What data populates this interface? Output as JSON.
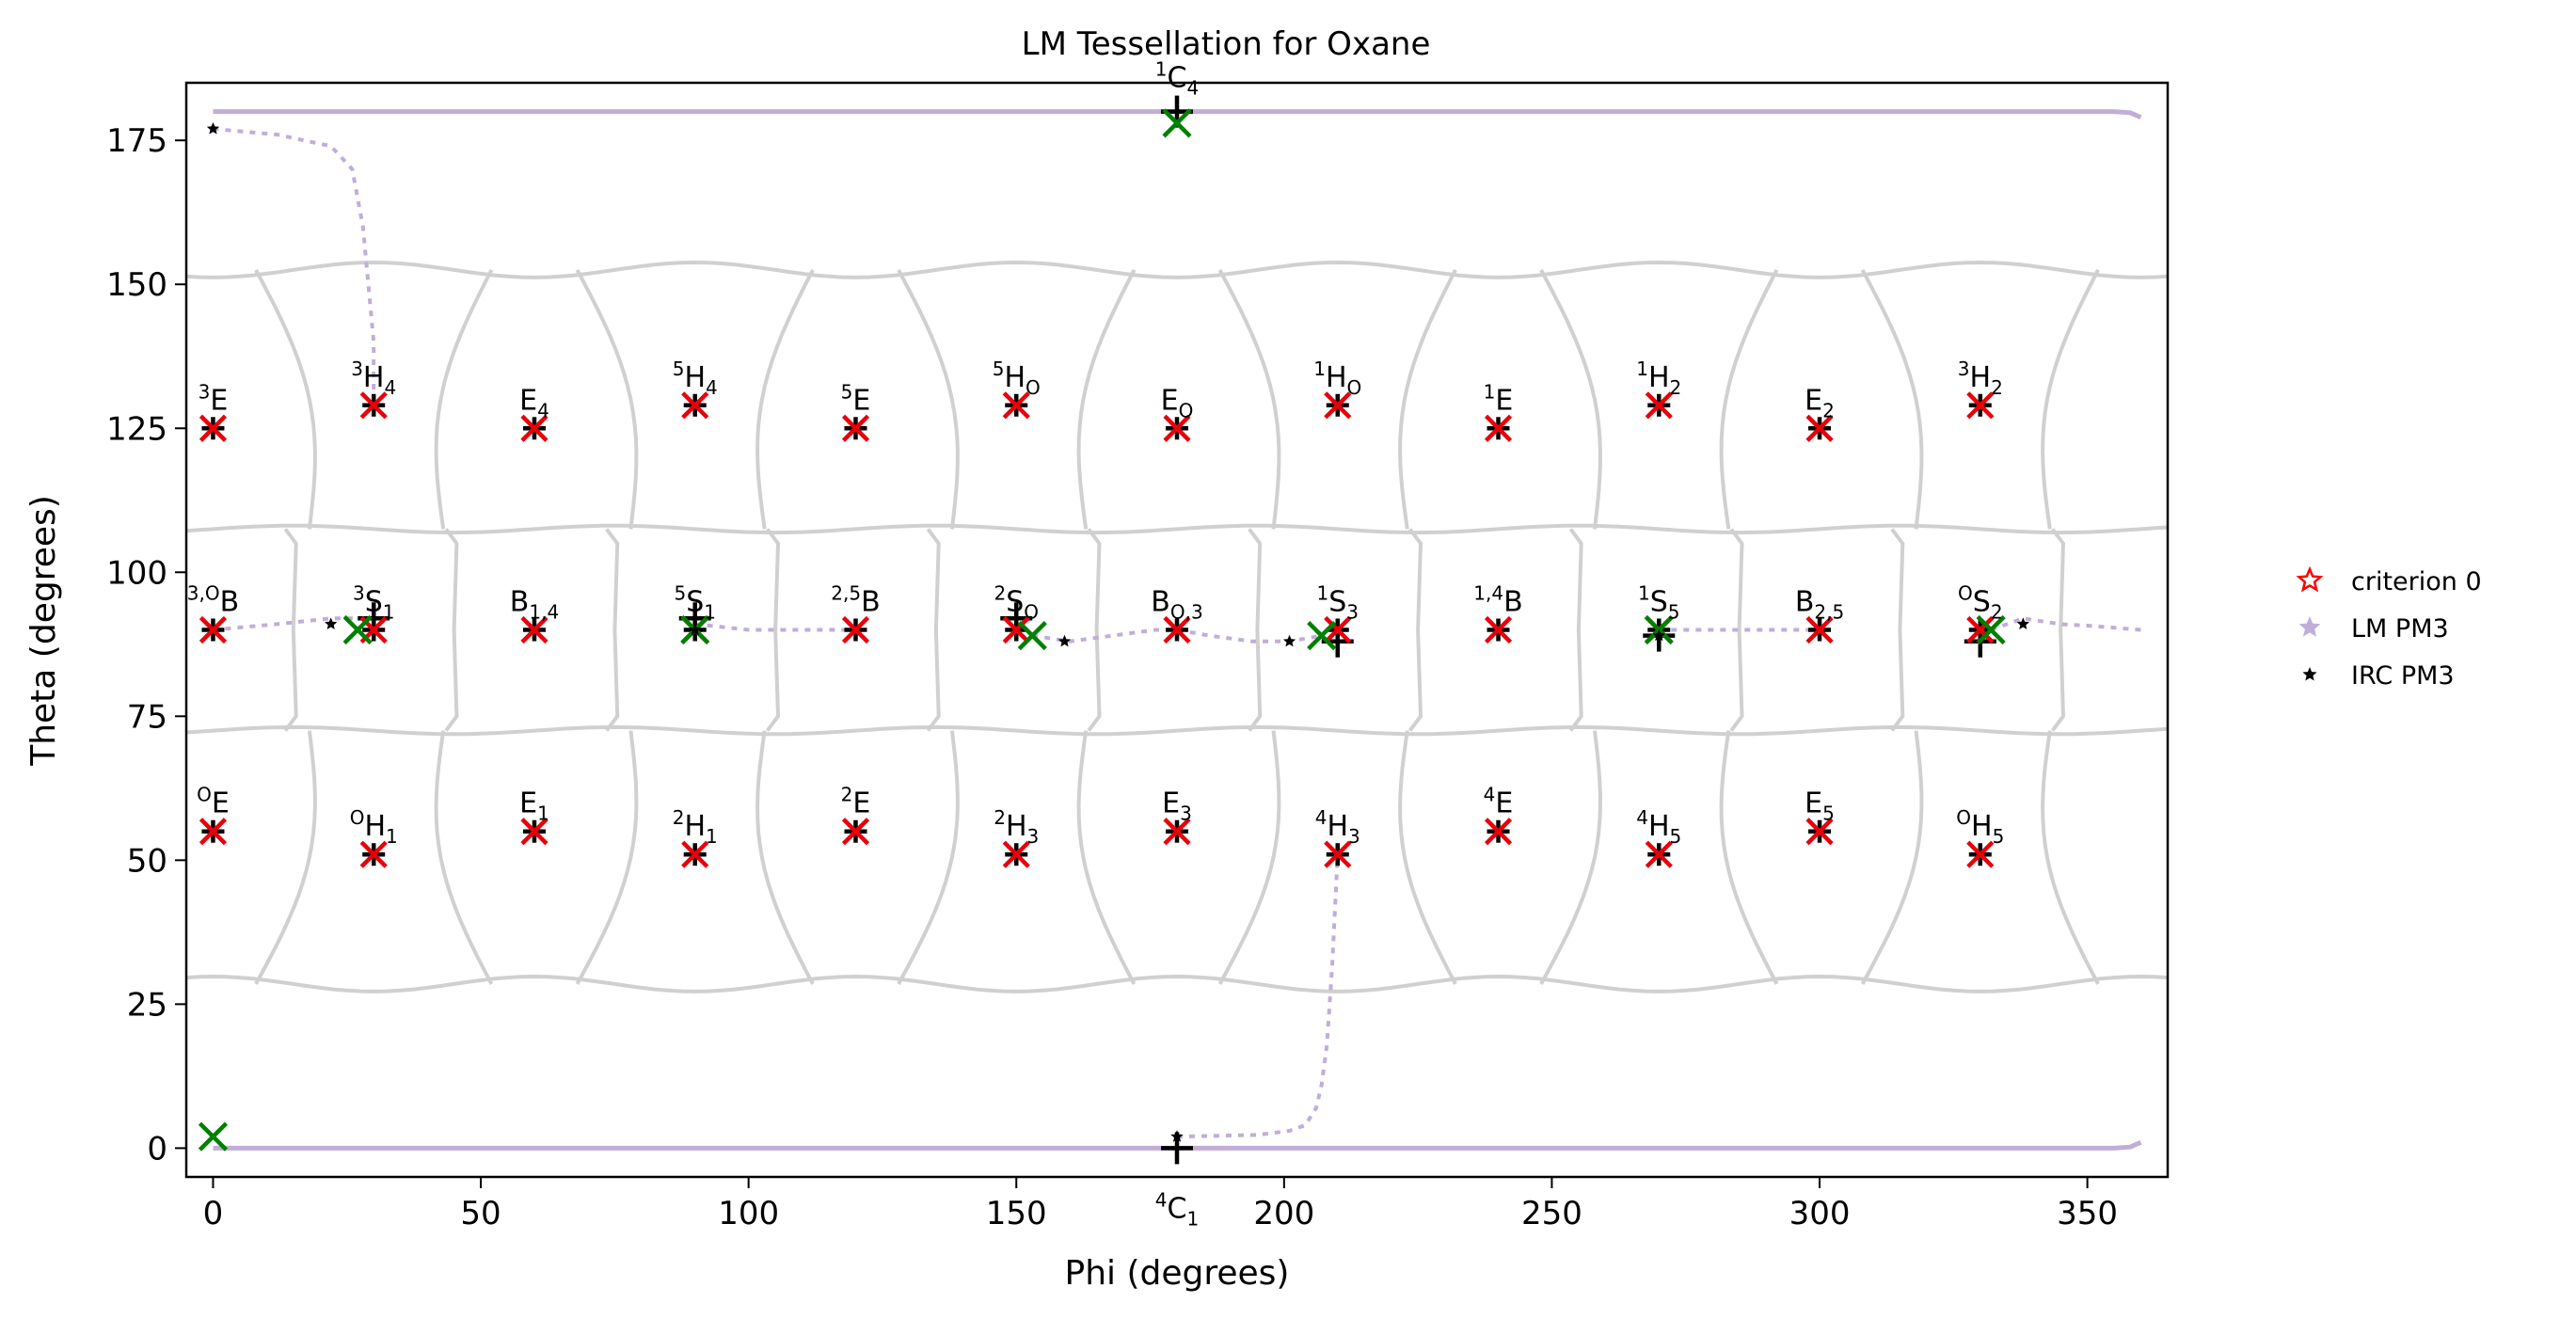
{
  "chart_data": {
    "type": "scatter",
    "title": "LM Tessellation for Oxane",
    "xlabel": "Phi (degrees)",
    "ylabel": "Theta (degrees)",
    "xlim": [
      -5,
      365
    ],
    "ylim": [
      185,
      -5
    ],
    "y_inverted": true,
    "xticks": [
      0,
      50,
      100,
      150,
      200,
      250,
      300,
      350
    ],
    "yticks": [
      0,
      25,
      50,
      75,
      100,
      125,
      150,
      175
    ],
    "grid": false,
    "legend": {
      "placement": "right-outside",
      "entries": [
        {
          "label": "criterion 0",
          "marker": "star-outline",
          "color": "#ff0000"
        },
        {
          "label": "LM PM3",
          "marker": "star",
          "color": "#c0aed8"
        },
        {
          "label": "IRC PM3",
          "marker": "star",
          "color": "#000000"
        }
      ]
    },
    "colors": {
      "reference_marker": "#e8000b",
      "green_marker": "#008000",
      "tessellation": "#d0d0d0",
      "path": "#c0aed8"
    },
    "puckers": [
      {
        "name": "4C1",
        "pre": "4",
        "base": "C",
        "sub": "1",
        "phi": 180,
        "theta": 0
      },
      {
        "name": "1C4",
        "pre": "1",
        "base": "C",
        "sub": "4",
        "phi": 180,
        "theta": 180
      },
      {
        "name": "OE",
        "pre": "O",
        "base": "E",
        "sub": "",
        "phi": 0,
        "theta": 55
      },
      {
        "name": "OH1",
        "pre": "O",
        "base": "H",
        "sub": "1",
        "phi": 30,
        "theta": 51
      },
      {
        "name": "E1",
        "pre": "",
        "base": "E",
        "sub": "1",
        "phi": 60,
        "theta": 55
      },
      {
        "name": "2H1",
        "pre": "2",
        "base": "H",
        "sub": "1",
        "phi": 90,
        "theta": 51
      },
      {
        "name": "2E",
        "pre": "2",
        "base": "E",
        "sub": "",
        "phi": 120,
        "theta": 55
      },
      {
        "name": "2H3",
        "pre": "2",
        "base": "H",
        "sub": "3",
        "phi": 150,
        "theta": 51
      },
      {
        "name": "E3",
        "pre": "",
        "base": "E",
        "sub": "3",
        "phi": 180,
        "theta": 55
      },
      {
        "name": "4H3",
        "pre": "4",
        "base": "H",
        "sub": "3",
        "phi": 210,
        "theta": 51
      },
      {
        "name": "4E",
        "pre": "4",
        "base": "E",
        "sub": "",
        "phi": 240,
        "theta": 55
      },
      {
        "name": "4H5",
        "pre": "4",
        "base": "H",
        "sub": "5",
        "phi": 270,
        "theta": 51
      },
      {
        "name": "E5",
        "pre": "",
        "base": "E",
        "sub": "5",
        "phi": 300,
        "theta": 55
      },
      {
        "name": "OH5",
        "pre": "O",
        "base": "H",
        "sub": "5",
        "phi": 330,
        "theta": 51
      },
      {
        "name": "3,OB",
        "pre": "3,O",
        "base": "B",
        "sub": "",
        "phi": 0,
        "theta": 90
      },
      {
        "name": "3S1",
        "pre": "3",
        "base": "S",
        "sub": "1",
        "phi": 30,
        "theta": 90
      },
      {
        "name": "B1,4",
        "pre": "",
        "base": "B",
        "sub": "1,4",
        "phi": 60,
        "theta": 90
      },
      {
        "name": "5S1",
        "pre": "5",
        "base": "S",
        "sub": "1",
        "phi": 90,
        "theta": 90
      },
      {
        "name": "2,5B",
        "pre": "2,5",
        "base": "B",
        "sub": "",
        "phi": 120,
        "theta": 90
      },
      {
        "name": "2SO",
        "pre": "2",
        "base": "S",
        "sub": "O",
        "phi": 150,
        "theta": 90
      },
      {
        "name": "BO,3",
        "pre": "",
        "base": "B",
        "sub": "O,3",
        "phi": 180,
        "theta": 90
      },
      {
        "name": "1S3",
        "pre": "1",
        "base": "S",
        "sub": "3",
        "phi": 210,
        "theta": 90
      },
      {
        "name": "1,4B",
        "pre": "1,4",
        "base": "B",
        "sub": "",
        "phi": 240,
        "theta": 90
      },
      {
        "name": "1S5",
        "pre": "1",
        "base": "S",
        "sub": "5",
        "phi": 270,
        "theta": 90
      },
      {
        "name": "B2,5",
        "pre": "",
        "base": "B",
        "sub": "2,5",
        "phi": 300,
        "theta": 90
      },
      {
        "name": "OS2",
        "pre": "O",
        "base": "S",
        "sub": "2",
        "phi": 330,
        "theta": 90
      },
      {
        "name": "3E",
        "pre": "3",
        "base": "E",
        "sub": "",
        "phi": 0,
        "theta": 125
      },
      {
        "name": "3H4",
        "pre": "3",
        "base": "H",
        "sub": "4",
        "phi": 30,
        "theta": 129
      },
      {
        "name": "E4",
        "pre": "",
        "base": "E",
        "sub": "4",
        "phi": 60,
        "theta": 125
      },
      {
        "name": "5H4",
        "pre": "5",
        "base": "H",
        "sub": "4",
        "phi": 90,
        "theta": 129
      },
      {
        "name": "5E",
        "pre": "5",
        "base": "E",
        "sub": "",
        "phi": 120,
        "theta": 125
      },
      {
        "name": "5HO",
        "pre": "5",
        "base": "H",
        "sub": "O",
        "phi": 150,
        "theta": 129
      },
      {
        "name": "EO",
        "pre": "",
        "base": "E",
        "sub": "O",
        "phi": 180,
        "theta": 125
      },
      {
        "name": "1HO",
        "pre": "1",
        "base": "H",
        "sub": "O",
        "phi": 210,
        "theta": 129
      },
      {
        "name": "1E",
        "pre": "1",
        "base": "E",
        "sub": "",
        "phi": 240,
        "theta": 125
      },
      {
        "name": "1H2",
        "pre": "1",
        "base": "H",
        "sub": "2",
        "phi": 270,
        "theta": 129
      },
      {
        "name": "E2",
        "pre": "",
        "base": "E",
        "sub": "2",
        "phi": 300,
        "theta": 125
      },
      {
        "name": "3H2",
        "pre": "3",
        "base": "H",
        "sub": "2",
        "phi": 330,
        "theta": 129
      }
    ],
    "green_x_points": [
      {
        "phi": 0,
        "theta": 2
      },
      {
        "phi": 180,
        "theta": 178
      },
      {
        "phi": 27,
        "theta": 90
      },
      {
        "phi": 90,
        "theta": 90
      },
      {
        "phi": 153,
        "theta": 89
      },
      {
        "phi": 207,
        "theta": 89
      },
      {
        "phi": 270,
        "theta": 90
      },
      {
        "phi": 332,
        "theta": 90
      }
    ],
    "plus_points": [
      {
        "phi": 180,
        "theta": 0
      },
      {
        "phi": 180,
        "theta": 180
      },
      {
        "phi": 30,
        "theta": 92
      },
      {
        "phi": 90,
        "theta": 92
      },
      {
        "phi": 150,
        "theta": 92
      },
      {
        "phi": 210,
        "theta": 88
      },
      {
        "phi": 270,
        "theta": 89
      },
      {
        "phi": 330,
        "theta": 88
      }
    ],
    "irc_points": [
      {
        "phi": 180,
        "theta": 2
      },
      {
        "phi": 0,
        "theta": 177
      },
      {
        "phi": 22,
        "theta": 91
      },
      {
        "phi": 90,
        "theta": 90
      },
      {
        "phi": 159,
        "theta": 88
      },
      {
        "phi": 201,
        "theta": 88
      },
      {
        "phi": 270,
        "theta": 89
      },
      {
        "phi": 338,
        "theta": 91
      }
    ],
    "lm_paths": [
      [
        [
          0,
          0
        ],
        [
          90,
          0
        ],
        [
          180,
          0
        ],
        [
          270,
          0
        ],
        [
          355,
          0
        ],
        [
          358,
          0.2
        ],
        [
          360,
          1
        ]
      ],
      [
        [
          0,
          180
        ],
        [
          90,
          180
        ],
        [
          180,
          180
        ],
        [
          270,
          180
        ],
        [
          355,
          180
        ],
        [
          358,
          179.8
        ],
        [
          360,
          179
        ]
      ],
      [
        [
          180,
          2
        ],
        [
          195,
          2.3
        ],
        [
          201,
          3
        ],
        [
          204,
          4
        ],
        [
          206,
          7
        ],
        [
          207,
          11
        ],
        [
          208,
          18
        ],
        [
          209,
          32
        ],
        [
          210,
          51
        ]
      ],
      [
        [
          0,
          177
        ],
        [
          12,
          176
        ],
        [
          22,
          174
        ],
        [
          26,
          170
        ],
        [
          28,
          160
        ],
        [
          29,
          150
        ],
        [
          30,
          140
        ],
        [
          30,
          129
        ]
      ],
      [
        [
          0,
          90
        ],
        [
          12,
          91
        ],
        [
          22,
          92
        ],
        [
          30,
          92
        ]
      ],
      [
        [
          90,
          91
        ],
        [
          100,
          90
        ],
        [
          110,
          90
        ],
        [
          120,
          90
        ]
      ],
      [
        [
          153,
          89
        ],
        [
          160,
          88
        ],
        [
          168,
          89
        ],
        [
          176,
          90
        ],
        [
          180,
          90
        ],
        [
          186,
          89
        ],
        [
          194,
          88
        ],
        [
          201,
          88
        ],
        [
          207,
          89
        ]
      ],
      [
        [
          270,
          90
        ],
        [
          280,
          90
        ],
        [
          290,
          90
        ],
        [
          300,
          90
        ]
      ],
      [
        [
          332,
          90
        ],
        [
          338,
          92
        ],
        [
          345,
          91
        ],
        [
          352,
          90.6
        ],
        [
          360,
          90
        ]
      ]
    ],
    "tessellation": {
      "rows": [
        {
          "name": "top",
          "top": 28,
          "bottom": 72,
          "left_edges": [
            0,
            30,
            60,
            90,
            120,
            150,
            180,
            210,
            240,
            270,
            300,
            330,
            360
          ]
        },
        {
          "name": "middle",
          "top": 72,
          "bottom": 108
        },
        {
          "name": "bottom",
          "top": 108,
          "bottom": 153
        }
      ]
    }
  }
}
